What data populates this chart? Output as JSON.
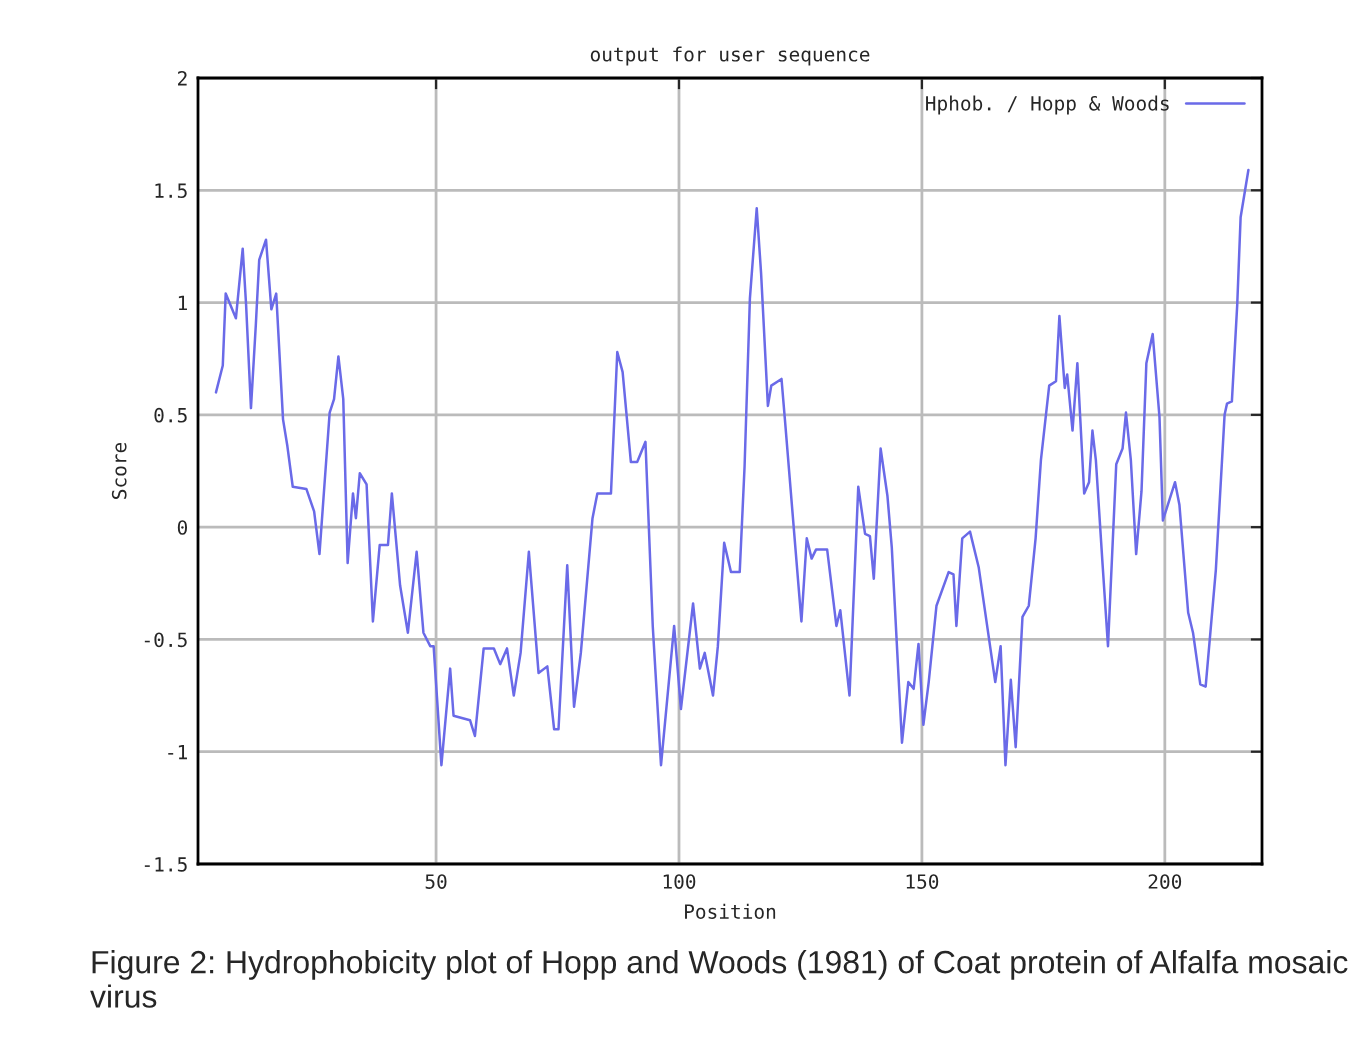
{
  "chart_data": {
    "type": "line",
    "title": "output for user sequence",
    "xlabel": "Position",
    "ylabel": "Score",
    "series": [
      {
        "name": "Hphob. / Hopp & Woods",
        "color": "#6a6ae8",
        "x": [
          4.7,
          6.1,
          6.7,
          8.8,
          10.2,
          10.9,
          11.9,
          12.9,
          13.6,
          15,
          16.1,
          17.1,
          18.5,
          19.4,
          20.5,
          23.3,
          24.9,
          26,
          27.4,
          28.1,
          29,
          29.9,
          30.9,
          31.8,
          32.9,
          33.5,
          34.3,
          35.7,
          37,
          38.4,
          40.1,
          40.9,
          42.6,
          44.2,
          46,
          47.4,
          48.8,
          49.5,
          51.1,
          52.9,
          53.6,
          57,
          58,
          59.8,
          61.9,
          63.2,
          64.6,
          66,
          67.4,
          69.1,
          71.1,
          72.9,
          74.3,
          75.2,
          77,
          78.4,
          79.8,
          82.2,
          83.2,
          86,
          87.3,
          88.4,
          90.1,
          91.4,
          93.1,
          94.6,
          96.3,
          99,
          100.4,
          102.9,
          104.3,
          105.3,
          107,
          108,
          109.3,
          110.7,
          112.5,
          113.5,
          114.6,
          116,
          116.9,
          118.3,
          119,
          121.1,
          121.8,
          123.8,
          125.2,
          126.3,
          127.3,
          128.2,
          130.5,
          132.4,
          133.2,
          135.1,
          136.9,
          138.3,
          139.3,
          140.1,
          141.5,
          142.9,
          143.8,
          145.9,
          147.2,
          148.3,
          149.3,
          150.3,
          151.4,
          153,
          155.5,
          156.5,
          157.1,
          158.3,
          159.9,
          161.7,
          165.1,
          166.2,
          167.2,
          168.3,
          169.3,
          170.7,
          172,
          173.4,
          174.5,
          176.2,
          177.6,
          178.3,
          179.4,
          179.9,
          181,
          182,
          183.4,
          184.4,
          185.1,
          185.8,
          187.2,
          188.3,
          190,
          191.3,
          192,
          193,
          194.1,
          195.2,
          196.2,
          197.5,
          198.9,
          199.6,
          202.1,
          203,
          204.8,
          205.8,
          207.3,
          208.4,
          210.5,
          212.3,
          212.8,
          213.8,
          214.9,
          215.6,
          217.2
        ],
        "values": [
          0.6,
          0.72,
          1.04,
          0.93,
          1.24,
          0.99,
          0.53,
          0.9,
          1.19,
          1.28,
          0.97,
          1.04,
          0.48,
          0.36,
          0.18,
          0.17,
          0.07,
          -0.12,
          0.3,
          0.51,
          0.57,
          0.76,
          0.57,
          -0.16,
          0.15,
          0.04,
          0.24,
          0.19,
          -0.42,
          -0.08,
          -0.08,
          0.15,
          -0.26,
          -0.47,
          -0.11,
          -0.47,
          -0.53,
          -0.53,
          -1.06,
          -0.63,
          -0.84,
          -0.86,
          -0.93,
          -0.54,
          -0.54,
          -0.61,
          -0.54,
          -0.75,
          -0.56,
          -0.11,
          -0.65,
          -0.62,
          -0.9,
          -0.9,
          -0.17,
          -0.8,
          -0.56,
          0.04,
          0.15,
          0.15,
          0.78,
          0.69,
          0.29,
          0.29,
          0.38,
          -0.44,
          -1.06,
          -0.44,
          -0.81,
          -0.34,
          -0.63,
          -0.56,
          -0.75,
          -0.53,
          -0.07,
          -0.2,
          -0.2,
          0.27,
          1.02,
          1.42,
          1.13,
          0.54,
          0.63,
          0.66,
          0.48,
          -0.05,
          -0.42,
          -0.05,
          -0.14,
          -0.1,
          -0.1,
          -0.44,
          -0.37,
          -0.75,
          0.18,
          -0.03,
          -0.04,
          -0.23,
          0.35,
          0.14,
          -0.09,
          -0.96,
          -0.69,
          -0.72,
          -0.52,
          -0.88,
          -0.69,
          -0.35,
          -0.2,
          -0.21,
          -0.44,
          -0.05,
          -0.02,
          -0.18,
          -0.69,
          -0.53,
          -1.06,
          -0.68,
          -0.98,
          -0.4,
          -0.35,
          -0.05,
          0.3,
          0.63,
          0.65,
          0.94,
          0.62,
          0.68,
          0.43,
          0.73,
          0.15,
          0.2,
          0.43,
          0.3,
          -0.17,
          -0.53,
          0.28,
          0.35,
          0.51,
          0.3,
          -0.12,
          0.16,
          0.73,
          0.86,
          0.49,
          0.03,
          0.2,
          0.1,
          -0.38,
          -0.47,
          -0.7,
          -0.71,
          -0.19,
          0.5,
          0.55,
          0.56,
          0.99,
          1.38,
          1.59
        ]
      }
    ],
    "xlim": [
      1,
      220
    ],
    "xticks": [
      50,
      100,
      150,
      200
    ],
    "ylim": [
      -1.5,
      2
    ],
    "yticks": [
      -1.5,
      -1,
      -0.5,
      0,
      0.5,
      1,
      1.5,
      2
    ],
    "grid": true,
    "legend": "top right",
    "annotations": [
      "Figure 2: Hydrophobicity plot of Hopp and Woods (1981) of Coat protein of Alfalfa mosaic virus"
    ]
  }
}
